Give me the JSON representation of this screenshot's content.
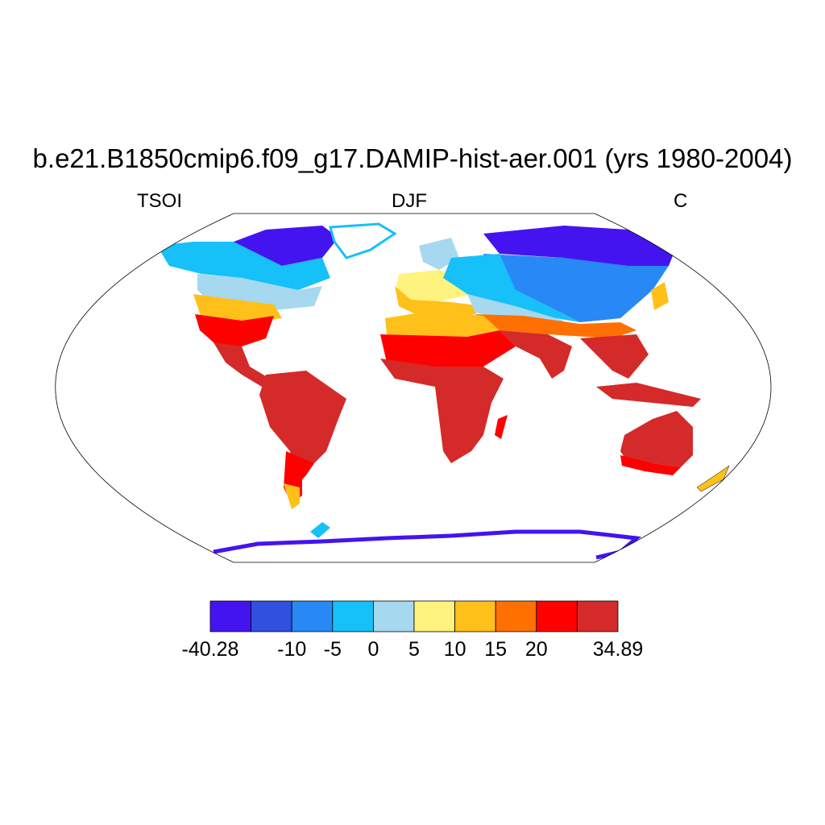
{
  "title": "b.e21.B1850cmip6.f09_g17.DAMIP-hist-aer.001 (yrs 1980-2004)",
  "left_string": "TSOI",
  "center_string": "DJF",
  "right_string": "C",
  "colorbar": {
    "colors": [
      "#4414f0",
      "#3150e0",
      "#2888f6",
      "#16c0f8",
      "#a6d8f0",
      "#fff380",
      "#ffc01a",
      "#ff7002",
      "#fe0000",
      "#d42a2a"
    ],
    "labels": [
      {
        "text": "-40.28",
        "boundary": 0
      },
      {
        "text": "-10",
        "boundary": 2
      },
      {
        "text": "-5",
        "boundary": 3
      },
      {
        "text": "0",
        "boundary": 4
      },
      {
        "text": "5",
        "boundary": 5
      },
      {
        "text": "10",
        "boundary": 6
      },
      {
        "text": "15",
        "boundary": 7
      },
      {
        "text": "20",
        "boundary": 8
      },
      {
        "text": "34.89",
        "boundary": 10
      }
    ]
  }
}
